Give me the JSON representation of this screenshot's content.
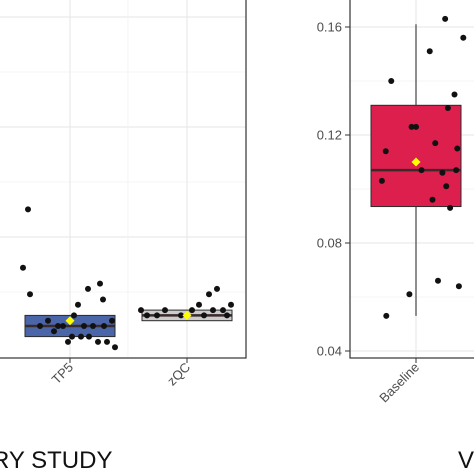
{
  "colors": {
    "panel_border": "#333333",
    "grid": "#e6e6e6",
    "point": "#111111",
    "mean_marker": "#ffff00",
    "box_red": "#dc1f4d",
    "box_blue": "#4a66a8",
    "median": "#3a2a2a",
    "whisker": "#444444"
  },
  "captions": {
    "left": "RY STUDY",
    "right": "V"
  },
  "chart_data": [
    {
      "type": "box",
      "panel": "left",
      "categories": [
        "TP5",
        "zQC"
      ],
      "grid": true,
      "series": [
        {
          "category": "TP5",
          "box_color": "#4a66a8",
          "q1": 0.046,
          "median": 0.048,
          "q3": 0.05,
          "mean": 0.049,
          "points": [
            [
              -0.42,
              0.07
            ],
            [
              -0.47,
              0.059
            ],
            [
              -0.4,
              0.054
            ],
            [
              -0.16,
              0.047
            ],
            [
              0.18,
              0.055
            ],
            [
              0.3,
              0.056
            ],
            [
              0.33,
              0.053
            ],
            [
              0.08,
              0.052
            ],
            [
              -0.22,
              0.049
            ],
            [
              -0.3,
              0.048
            ],
            [
              -0.12,
              0.048
            ],
            [
              -0.07,
              0.048
            ],
            [
              0.0,
              0.049
            ],
            [
              0.04,
              0.05
            ],
            [
              0.14,
              0.048
            ],
            [
              0.23,
              0.048
            ],
            [
              0.34,
              0.048
            ],
            [
              0.42,
              0.049
            ],
            [
              0.11,
              0.046
            ],
            [
              0.19,
              0.046
            ],
            [
              0.28,
              0.045
            ],
            [
              0.37,
              0.045
            ],
            [
              -0.02,
              0.045
            ],
            [
              0.45,
              0.044
            ],
            [
              0.02,
              0.046
            ]
          ]
        },
        {
          "category": "zQC",
          "box_color": "#cccccc",
          "q1": 0.049,
          "median": 0.05,
          "q3": 0.051,
          "mean": 0.05,
          "points": [
            [
              -0.46,
              0.051
            ],
            [
              -0.4,
              0.05
            ],
            [
              -0.3,
              0.05
            ],
            [
              -0.22,
              0.051
            ],
            [
              -0.06,
              0.05
            ],
            [
              0.05,
              0.051
            ],
            [
              0.17,
              0.05
            ],
            [
              0.22,
              0.054
            ],
            [
              0.26,
              0.051
            ],
            [
              0.3,
              0.055
            ],
            [
              0.36,
              0.051
            ],
            [
              0.44,
              0.052
            ],
            [
              0.12,
              0.052
            ],
            [
              0.4,
              0.05
            ]
          ]
        }
      ]
    },
    {
      "type": "box",
      "panel": "right",
      "categories": [
        "Baseline"
      ],
      "grid": true,
      "ylim": [
        0.04,
        0.165
      ],
      "yticks": [
        0.04,
        0.08,
        0.12,
        0.16
      ],
      "series": [
        {
          "category": "Baseline",
          "box_color": "#dc1f4d",
          "q1": 0.0935,
          "median": 0.107,
          "q3": 0.131,
          "mean": 0.11,
          "whisker_low": 0.053,
          "whisker_high": 0.161,
          "points": [
            [
              -0.62,
              0.103
            ],
            [
              -0.55,
              0.114
            ],
            [
              -0.54,
              0.053
            ],
            [
              -0.45,
              0.14
            ],
            [
              -0.12,
              0.061
            ],
            [
              -0.08,
              0.123
            ],
            [
              0.0,
              0.123
            ],
            [
              0.1,
              0.107
            ],
            [
              0.25,
              0.151
            ],
            [
              0.3,
              0.096
            ],
            [
              0.35,
              0.117
            ],
            [
              0.4,
              0.066
            ],
            [
              0.48,
              0.106
            ],
            [
              0.53,
              0.163
            ],
            [
              0.55,
              0.101
            ],
            [
              0.58,
              0.13
            ],
            [
              0.62,
              0.093
            ],
            [
              0.7,
              0.135
            ],
            [
              0.73,
              0.107
            ],
            [
              0.75,
              0.115
            ],
            [
              0.78,
              0.064
            ],
            [
              0.86,
              0.156
            ]
          ]
        }
      ]
    }
  ]
}
